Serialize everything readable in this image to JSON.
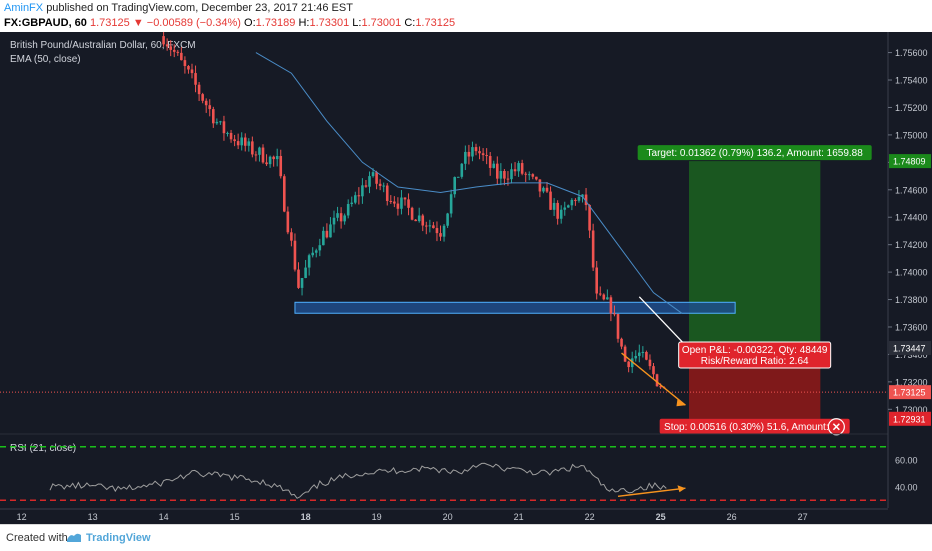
{
  "header": {
    "author": "AminFX",
    "published": "published on TradingView.com, December 23, 2017 21:46 EST",
    "symbol": "FX:GBPAUD, 60",
    "last": "1.73125",
    "change_arrow": "▼",
    "change": "−0.00589 (−0.34%)",
    "open_label": "O:",
    "open": "1.73189",
    "high_label": "H:",
    "high": "1.73301",
    "low_label": "L:",
    "low": "1.73001",
    "close_label": "C:",
    "close": "1.73125"
  },
  "footer": {
    "created_with": "Created with",
    "brand": "TradingView",
    "brand_icon": "tradingview-logo-icon"
  },
  "colors": {
    "background": "#161a25",
    "up": "#26a69a",
    "down": "#ef5350",
    "ema": "#4a8cc7",
    "rsi_line": "#9e9e9e",
    "target_zone": "#1b5e20",
    "stop_zone": "#8b1a1a",
    "support_box": "#1f4e8c",
    "trendline": "#ffffff",
    "wedge_arrow": "#f7931e",
    "rsi_upper": "#19c219",
    "rsi_lower": "#d62828"
  },
  "chart_data": [
    {
      "type": "candlestick",
      "title": "British Pound/Australian Dollar, 60, FXCM",
      "indicator": "EMA (50, close)",
      "x_ticks": [
        "12",
        "13",
        "14",
        "15",
        "18",
        "19",
        "20",
        "21",
        "22",
        "25",
        "26",
        "27"
      ],
      "y_ticks": [
        "1.75600",
        "1.75400",
        "1.75200",
        "1.75000",
        "1.74800",
        "1.74600",
        "1.74400",
        "1.74200",
        "1.74000",
        "1.73800",
        "1.73600",
        "1.73400",
        "1.73200",
        "1.73000"
      ],
      "ylim": [
        1.7282,
        1.7575
      ],
      "grid": false,
      "ohlc_path_approx": [
        {
          "x": 1.6,
          "close": 1.7572
        },
        {
          "x": 2.0,
          "close": 1.754
        },
        {
          "x": 2.4,
          "close": 1.7505
        },
        {
          "x": 2.8,
          "close": 1.749
        },
        {
          "x": 3.2,
          "close": 1.748
        },
        {
          "x": 3.5,
          "close": 1.739
        },
        {
          "x": 3.8,
          "close": 1.7425
        },
        {
          "x": 4.2,
          "close": 1.7445
        },
        {
          "x": 4.5,
          "close": 1.747
        },
        {
          "x": 4.8,
          "close": 1.7455
        },
        {
          "x": 5.2,
          "close": 1.744
        },
        {
          "x": 5.5,
          "close": 1.743
        },
        {
          "x": 5.8,
          "close": 1.748
        },
        {
          "x": 6.0,
          "close": 1.749
        },
        {
          "x": 6.3,
          "close": 1.747
        },
        {
          "x": 6.6,
          "close": 1.7475
        },
        {
          "x": 6.9,
          "close": 1.746
        },
        {
          "x": 7.2,
          "close": 1.744
        },
        {
          "x": 7.4,
          "close": 1.7455
        },
        {
          "x": 7.55,
          "close": 1.745
        },
        {
          "x": 7.7,
          "close": 1.738
        },
        {
          "x": 7.9,
          "close": 1.7375
        },
        {
          "x": 8.1,
          "close": 1.7335
        },
        {
          "x": 8.3,
          "close": 1.734
        },
        {
          "x": 8.5,
          "close": 1.7325
        },
        {
          "x": 8.68,
          "close": 1.7312
        }
      ],
      "ema_path_approx": [
        {
          "x": 2.9,
          "y": 1.756
        },
        {
          "x": 3.4,
          "y": 1.7545
        },
        {
          "x": 3.9,
          "y": 1.751
        },
        {
          "x": 4.4,
          "y": 1.748
        },
        {
          "x": 4.9,
          "y": 1.7462
        },
        {
          "x": 5.5,
          "y": 1.7458
        },
        {
          "x": 6.0,
          "y": 1.7462
        },
        {
          "x": 6.5,
          "y": 1.7465
        },
        {
          "x": 7.0,
          "y": 1.7465
        },
        {
          "x": 7.5,
          "y": 1.7455
        },
        {
          "x": 8.0,
          "y": 1.742
        },
        {
          "x": 8.5,
          "y": 1.7385
        },
        {
          "x": 8.9,
          "y": 1.737
        }
      ],
      "support_zone": {
        "x0": 3.45,
        "x1": 9.65,
        "y0": 1.737,
        "y1": 1.7378
      },
      "position": {
        "x0": 9.0,
        "x1": 10.85,
        "entry": 1.73447,
        "target": 1.74809,
        "stop": 1.72931,
        "target_label": "Target: 0.01362 (0.79%) 136.2, Amount: 1659.88",
        "stop_label": "Stop: 0.00516 (0.30%) 51.6, Amount: 7...",
        "pnl_label": "Open P&L: -0.00322, Qty: 48449",
        "rr_label": "Risk/Reward Ratio: 2.64"
      },
      "trendline": {
        "x0": 8.3,
        "y0": 1.7382,
        "x1": 9.0,
        "y1": 1.7344
      },
      "wedge_arrow": {
        "x0": 8.05,
        "y0": 1.7341,
        "x1": 8.95,
        "y1": 1.7303
      },
      "price_markers": [
        {
          "label": "1.74809",
          "value": 1.74809,
          "kind": "target"
        },
        {
          "label": "1.73447",
          "value": 1.73447,
          "kind": "entry"
        },
        {
          "label": "1.73125",
          "value": 1.73125,
          "kind": "last"
        },
        {
          "label": "1.72931",
          "value": 1.72931,
          "kind": "stop"
        }
      ]
    },
    {
      "type": "line",
      "title": "RSI (21, close)",
      "y_ticks": [
        "60.00",
        "40.00"
      ],
      "ylim": [
        25,
        75
      ],
      "levels": [
        70,
        30
      ],
      "values_approx": [
        {
          "x": 0.0,
          "y": 40
        },
        {
          "x": 0.5,
          "y": 41
        },
        {
          "x": 1.0,
          "y": 38
        },
        {
          "x": 1.5,
          "y": 42
        },
        {
          "x": 2.0,
          "y": 50
        },
        {
          "x": 2.5,
          "y": 48
        },
        {
          "x": 3.0,
          "y": 44
        },
        {
          "x": 3.3,
          "y": 38
        },
        {
          "x": 3.5,
          "y": 31
        },
        {
          "x": 3.8,
          "y": 42
        },
        {
          "x": 4.3,
          "y": 50
        },
        {
          "x": 4.8,
          "y": 52
        },
        {
          "x": 5.3,
          "y": 54
        },
        {
          "x": 5.8,
          "y": 51
        },
        {
          "x": 6.0,
          "y": 57
        },
        {
          "x": 6.5,
          "y": 53
        },
        {
          "x": 7.0,
          "y": 50
        },
        {
          "x": 7.5,
          "y": 56
        },
        {
          "x": 7.7,
          "y": 45
        },
        {
          "x": 7.9,
          "y": 36
        },
        {
          "x": 8.2,
          "y": 38
        },
        {
          "x": 8.5,
          "y": 41
        },
        {
          "x": 8.7,
          "y": 38
        }
      ],
      "divergence_arrow": {
        "x0": 8.0,
        "y0": 33,
        "x1": 8.95,
        "y1": 39
      }
    }
  ]
}
